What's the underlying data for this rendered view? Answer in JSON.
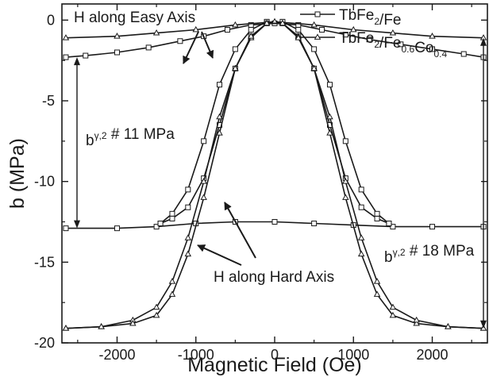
{
  "chart_data": {
    "type": "line",
    "title": "",
    "xlabel": "Magnetic Field (Oe)",
    "ylabel": "b (MPa)",
    "xlim": [
      -2700,
      2700
    ],
    "ylim": [
      -20,
      1
    ],
    "xticks": [
      -2000,
      -1000,
      0,
      1000,
      2000
    ],
    "yticks": [
      0,
      -5,
      -10,
      -15,
      -20
    ],
    "grid": false,
    "legend_position": "top-right",
    "series": [
      {
        "name_parts": [
          [
            "TbFe",
            ""
          ],
          [
            "2",
            "sub"
          ],
          [
            "/Fe",
            ""
          ]
        ],
        "marker": "square",
        "branches": [
          {
            "label": "easy axis, upper",
            "x": [
              -2650,
              -2400,
              -2000,
              -1600,
              -1200,
              -900,
              -600,
              -300,
              0,
              300,
              600,
              900,
              1200,
              1600,
              2000,
              2400,
              2650
            ],
            "y": [
              -2.3,
              -2.2,
              -2.0,
              -1.7,
              -1.3,
              -1.0,
              -0.6,
              -0.3,
              -0.2,
              -0.3,
              -0.6,
              -0.9,
              -1.2,
              -1.5,
              -1.8,
              -2.1,
              -2.3
            ]
          },
          {
            "label": "easy axis, lower",
            "x": [
              -2650,
              -2000,
              -1500,
              -1000,
              -500,
              0,
              500,
              1000,
              1500,
              2000,
              2650
            ],
            "y": [
              -12.9,
              -12.9,
              -12.8,
              -12.6,
              -12.5,
              -12.5,
              -12.6,
              -12.7,
              -12.8,
              -12.8,
              -12.8
            ]
          },
          {
            "label": "hard axis, descending",
            "x": [
              -1450,
              -1300,
              -1100,
              -900,
              -700,
              -500,
              -300,
              -100,
              100,
              300,
              500,
              700,
              900,
              1100,
              1300,
              1450
            ],
            "y": [
              -12.6,
              -12.0,
              -10.5,
              -7.5,
              -4.0,
              -1.8,
              -0.6,
              -0.1,
              -0.2,
              -1.0,
              -3.0,
              -6.5,
              -9.8,
              -11.6,
              -12.3,
              -12.6
            ]
          },
          {
            "label": "hard axis, ascending",
            "x": [
              -1450,
              -1300,
              -1100,
              -900,
              -700,
              -500,
              -300,
              -100,
              100,
              300,
              500,
              700,
              900,
              1100,
              1300,
              1450
            ],
            "y": [
              -12.6,
              -12.3,
              -11.6,
              -9.8,
              -6.5,
              -3.0,
              -1.0,
              -0.2,
              -0.1,
              -0.6,
              -1.8,
              -4.0,
              -7.5,
              -10.5,
              -12.0,
              -12.6
            ]
          }
        ]
      },
      {
        "name_parts": [
          [
            "TbFe",
            ""
          ],
          [
            "2",
            "sub"
          ],
          [
            "/Fe",
            ""
          ],
          [
            "0.6",
            "sub"
          ],
          [
            "Co",
            ""
          ],
          [
            "0.4",
            "sub"
          ]
        ],
        "marker": "triangle",
        "branches": [
          {
            "label": "easy axis",
            "x": [
              -2650,
              -2000,
              -1500,
              -1000,
              -500,
              0,
              500,
              1000,
              1500,
              2000,
              2650
            ],
            "y": [
              -1.1,
              -1.0,
              -0.8,
              -0.6,
              -0.3,
              -0.1,
              -0.3,
              -0.6,
              -0.8,
              -1.0,
              -1.1
            ]
          },
          {
            "label": "hard axis, descending",
            "x": [
              -2650,
              -2200,
              -1800,
              -1500,
              -1300,
              -1100,
              -900,
              -700,
              -500,
              -300,
              -100,
              100,
              300,
              500,
              700,
              900,
              1100,
              1300,
              1500,
              1800,
              2200,
              2650
            ],
            "y": [
              -19.1,
              -19.0,
              -18.6,
              -17.8,
              -16.2,
              -13.5,
              -10.0,
              -6.0,
              -3.0,
              -1.1,
              -0.2,
              -0.2,
              -1.0,
              -3.0,
              -7.0,
              -11.0,
              -14.5,
              -17.0,
              -18.3,
              -18.8,
              -19.0,
              -19.1
            ]
          },
          {
            "label": "hard axis, ascending",
            "x": [
              -2650,
              -2200,
              -1800,
              -1500,
              -1300,
              -1100,
              -900,
              -700,
              -500,
              -300,
              -100,
              100,
              300,
              500,
              700,
              900,
              1100,
              1300,
              1500,
              1800,
              2200,
              2650
            ],
            "y": [
              -19.1,
              -19.0,
              -18.8,
              -18.3,
              -17.0,
              -14.5,
              -11.0,
              -7.0,
              -3.0,
              -1.0,
              -0.2,
              -0.2,
              -1.1,
              -3.0,
              -6.0,
              -10.0,
              -13.5,
              -16.2,
              -17.8,
              -18.6,
              -19.0,
              -19.1
            ]
          }
        ]
      }
    ],
    "annotations": [
      {
        "id": "easy",
        "parts": [
          [
            "H along Easy Axis",
            ""
          ]
        ]
      },
      {
        "id": "hard",
        "parts": [
          [
            "H along Hard Axis",
            ""
          ]
        ]
      },
      {
        "id": "b11",
        "parts": [
          [
            "b",
            ""
          ],
          [
            "γ,2",
            "sup"
          ],
          [
            " # 11 MPa",
            ""
          ]
        ]
      },
      {
        "id": "b18",
        "parts": [
          [
            "b",
            ""
          ],
          [
            "γ,2",
            "sup"
          ],
          [
            " # 18 MPa",
            ""
          ]
        ]
      }
    ]
  }
}
